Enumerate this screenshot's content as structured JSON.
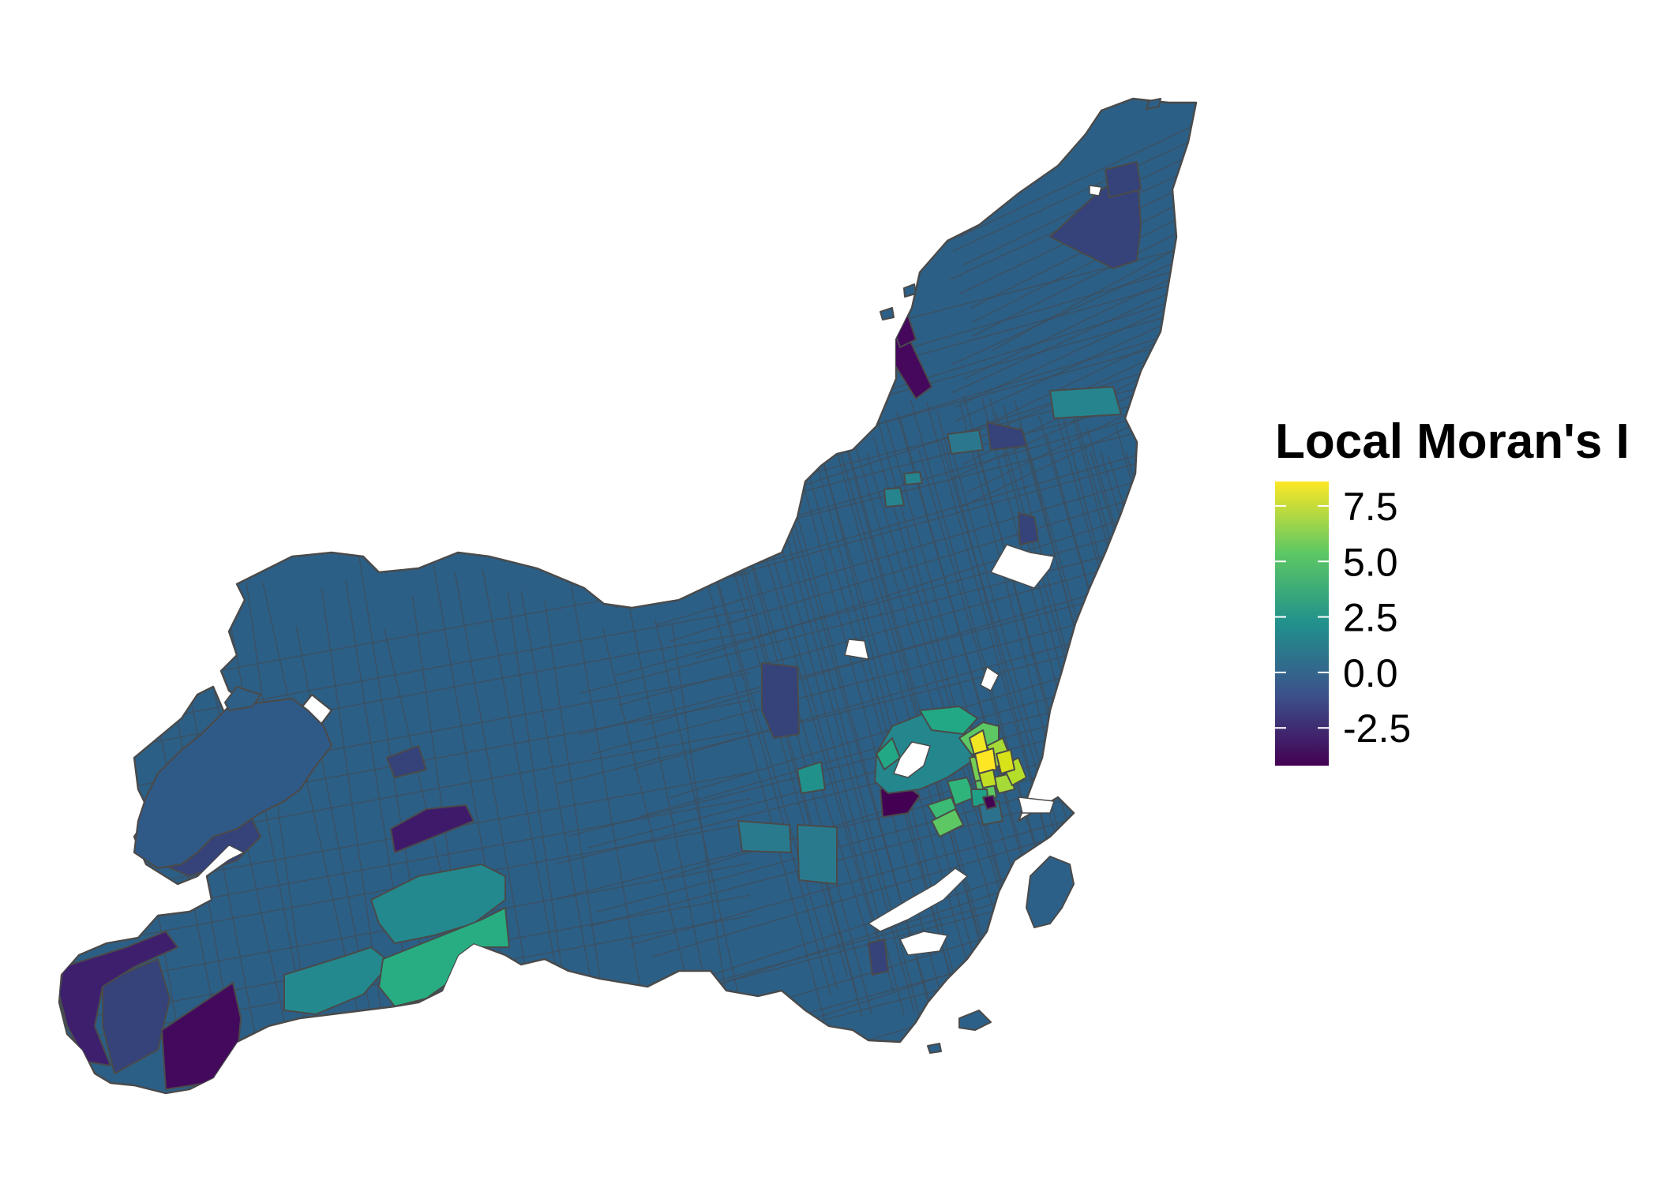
{
  "legend": {
    "title": "Local Moran's I",
    "ticks": [
      {
        "label": "7.5",
        "value": 7.5
      },
      {
        "label": "5.0",
        "value": 5.0
      },
      {
        "label": "2.5",
        "value": 2.5
      },
      {
        "label": "0.0",
        "value": 0.0
      },
      {
        "label": "-2.5",
        "value": -2.5
      }
    ],
    "range": [
      -4.2,
      8.6
    ],
    "colors": [
      "#440154",
      "#3b528b",
      "#21908d",
      "#5dc863",
      "#fde725"
    ]
  },
  "map": {
    "name": "Montreal island census tracts",
    "base_color": "#2c5f86",
    "hotspot_colors": {
      "high_high": "#fde725",
      "high": "#a6db37",
      "medium_high": "#5dc863",
      "medium": "#27ad81",
      "teal": "#21908d",
      "low": "#3b528b",
      "very_low": "#440154"
    }
  }
}
